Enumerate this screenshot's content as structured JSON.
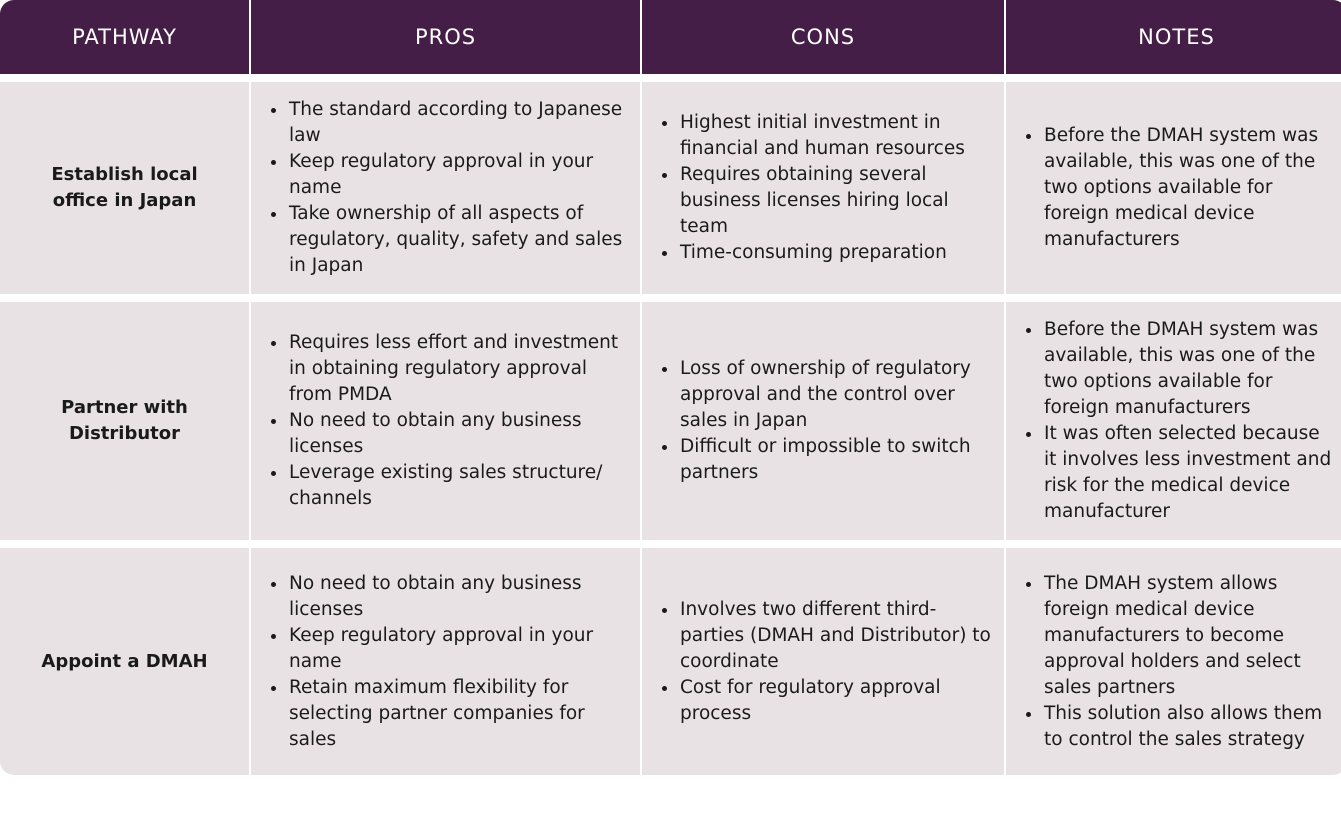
{
  "headers": {
    "pathway": "PATHWAY",
    "pros": "PROS",
    "cons": "CONS",
    "notes": "NOTES"
  },
  "colors": {
    "header_bg": "#451e47",
    "header_text": "#ffffff",
    "cell_bg": "#e8e2e4"
  },
  "rows": [
    {
      "pathway": "Establish local office in Japan",
      "pros": [
        "The standard according to Japanese law",
        "Keep regulatory approval in your name",
        "Take ownership of all aspects of regulatory, quality, safety and sales in Japan"
      ],
      "cons": [
        "Highest initial investment in financial and human resources",
        "Requires obtaining several business licenses hiring local team",
        "Time-consuming preparation"
      ],
      "notes": [
        "Before the DMAH system was available, this was one of the two options available for foreign medical device manufacturers"
      ]
    },
    {
      "pathway": "Partner with Distributor",
      "pros": [
        "Requires less effort and investment in obtaining regulatory approval from PMDA",
        "No need to obtain any business licenses",
        "Leverage existing sales structure/ channels"
      ],
      "cons": [
        "Loss of ownership of regulatory approval and the control over sales in Japan",
        "Difficult or impossible to switch partners"
      ],
      "notes": [
        "Before the DMAH system was available, this was one of the two options available for foreign manufacturers",
        "It was often selected because it involves less investment and risk for the medical device manufacturer"
      ]
    },
    {
      "pathway": "Appoint a DMAH",
      "pros": [
        "No need to obtain any business licenses",
        "Keep regulatory approval in your name",
        "Retain maximum flexibility for selecting partner companies for sales"
      ],
      "cons": [
        "Involves two different third-parties (DMAH and Distributor) to coordinate",
        "Cost for regulatory approval process"
      ],
      "notes": [
        "The DMAH system allows foreign medical device manufacturers to become approval holders and select sales partners",
        "This solution also allows them to control the sales strategy"
      ]
    }
  ]
}
